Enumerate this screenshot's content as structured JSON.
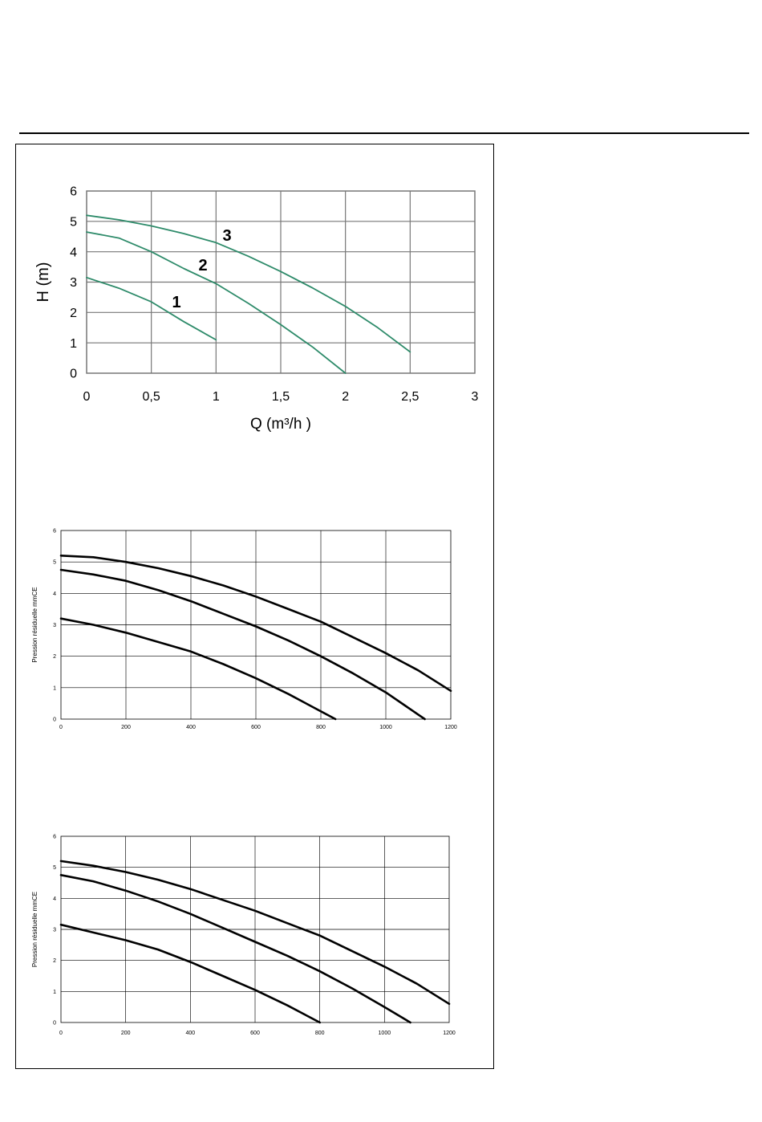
{
  "chart_data": [
    {
      "type": "line",
      "xlabel": "Q (m³/h )",
      "ylabel": "H (m)",
      "xlim": [
        0,
        3
      ],
      "ylim": [
        0,
        6
      ],
      "xticks": [
        "0",
        "0,5",
        "1",
        "1,5",
        "2",
        "2,5",
        "3"
      ],
      "yticks": [
        "0",
        "1",
        "2",
        "3",
        "4",
        "5",
        "6"
      ],
      "grid": true,
      "line_color": "#2e8b6a",
      "series": [
        {
          "name": "1",
          "x": [
            0,
            0.25,
            0.5,
            0.75,
            1.0
          ],
          "y": [
            3.15,
            2.8,
            2.35,
            1.7,
            1.1
          ]
        },
        {
          "name": "2",
          "x": [
            0,
            0.25,
            0.5,
            0.75,
            1.0,
            1.25,
            1.5,
            1.75,
            2.0
          ],
          "y": [
            4.65,
            4.45,
            4.0,
            3.45,
            2.95,
            2.3,
            1.6,
            0.85,
            0.0
          ]
        },
        {
          "name": "3",
          "x": [
            0,
            0.25,
            0.5,
            0.75,
            1.0,
            1.25,
            1.5,
            1.75,
            2.0,
            2.25,
            2.5
          ],
          "y": [
            5.2,
            5.05,
            4.85,
            4.6,
            4.3,
            3.85,
            3.35,
            2.8,
            2.2,
            1.5,
            0.7
          ]
        }
      ]
    },
    {
      "type": "line",
      "xlabel": "",
      "ylabel": "Pression résiduelle mmCE",
      "xlim": [
        0,
        1200
      ],
      "ylim": [
        0,
        6
      ],
      "xticks": [
        "0",
        "200",
        "400",
        "600",
        "800",
        "1000",
        "1200"
      ],
      "yticks": [
        "0",
        "1",
        "2",
        "3",
        "4",
        "5",
        "6"
      ],
      "grid": true,
      "line_color": "#000000",
      "series": [
        {
          "x": [
            0,
            100,
            200,
            300,
            400,
            500,
            600,
            700,
            800,
            900,
            1000,
            1100,
            1200
          ],
          "y": [
            5.2,
            5.15,
            5.0,
            4.8,
            4.55,
            4.25,
            3.9,
            3.5,
            3.1,
            2.6,
            2.1,
            1.55,
            0.9
          ]
        },
        {
          "x": [
            0,
            100,
            200,
            300,
            400,
            500,
            600,
            700,
            800,
            900,
            1000,
            1120
          ],
          "y": [
            4.75,
            4.6,
            4.4,
            4.1,
            3.75,
            3.35,
            2.95,
            2.5,
            2.0,
            1.45,
            0.85,
            0.0
          ]
        },
        {
          "x": [
            0,
            100,
            200,
            300,
            400,
            500,
            600,
            700,
            845
          ],
          "y": [
            3.2,
            3.0,
            2.75,
            2.45,
            2.15,
            1.75,
            1.3,
            0.8,
            0.0
          ]
        }
      ]
    },
    {
      "type": "line",
      "xlabel": "",
      "ylabel": "Pression résiduelle mmCE",
      "xlim": [
        0,
        1200
      ],
      "ylim": [
        0,
        6
      ],
      "xticks": [
        "0",
        "200",
        "400",
        "600",
        "800",
        "1000",
        "1200"
      ],
      "yticks": [
        "0",
        "1",
        "2",
        "3",
        "4",
        "5",
        "6"
      ],
      "grid": true,
      "line_color": "#000000",
      "series": [
        {
          "x": [
            0,
            100,
            200,
            300,
            400,
            500,
            600,
            700,
            800,
            900,
            1000,
            1100,
            1200
          ],
          "y": [
            5.2,
            5.05,
            4.85,
            4.6,
            4.3,
            3.95,
            3.6,
            3.2,
            2.8,
            2.3,
            1.8,
            1.25,
            0.6
          ]
        },
        {
          "x": [
            0,
            100,
            200,
            300,
            400,
            500,
            600,
            700,
            800,
            900,
            1000,
            1080
          ],
          "y": [
            4.75,
            4.55,
            4.25,
            3.9,
            3.5,
            3.05,
            2.6,
            2.15,
            1.65,
            1.1,
            0.5,
            0.0
          ]
        },
        {
          "x": [
            0,
            100,
            200,
            300,
            400,
            500,
            600,
            700,
            800
          ],
          "y": [
            3.15,
            2.9,
            2.65,
            2.35,
            1.95,
            1.5,
            1.05,
            0.55,
            0.0
          ]
        }
      ]
    }
  ]
}
